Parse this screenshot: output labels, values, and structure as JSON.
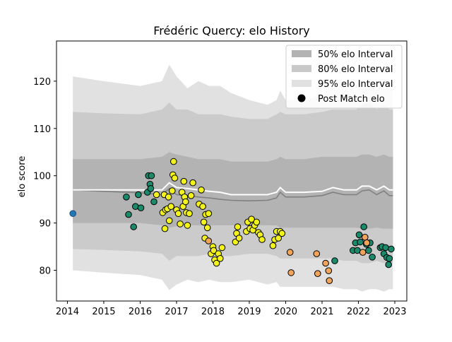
{
  "chart_data": {
    "type": "scatter",
    "title": "Frédéric Quercy: elo History",
    "xlabel": "",
    "ylabel": "elo score",
    "xlim": [
      2013.7,
      2023.33
    ],
    "ylim": [
      73.5,
      128.5
    ],
    "x_ticks": [
      2014,
      2015,
      2016,
      2017,
      2018,
      2019,
      2020,
      2021,
      2022,
      2023
    ],
    "y_ticks": [
      80,
      90,
      100,
      110,
      120
    ],
    "grid": false,
    "legend_position": "top-right",
    "legend": [
      {
        "label": "50% elo Interval",
        "swatch": "#b3b3b3",
        "kind": "patch"
      },
      {
        "label": "80% elo Interval",
        "swatch": "#c9c9c9",
        "kind": "patch"
      },
      {
        "label": "95% elo Interval",
        "swatch": "#e1e1e1",
        "kind": "patch"
      },
      {
        "label": "Post Match elo",
        "swatch": "#000000",
        "kind": "marker"
      }
    ],
    "colors": {
      "band95": "#e1e1e1",
      "band80": "#cbcbcb",
      "band50": "#b3b3b3",
      "mean_line": "#ffffff",
      "median_line": "#808080",
      "point_edge": "#000000",
      "green": "#1b8a6b",
      "yellow": "#f2f21c",
      "orange": "#f2a55a",
      "blue": "#1f77b4"
    },
    "interval_x": [
      2014.15,
      2015.0,
      2016.0,
      2016.6,
      2016.8,
      2017.0,
      2017.3,
      2017.6,
      2017.9,
      2018.2,
      2018.5,
      2019.0,
      2019.5,
      2019.75,
      2019.85,
      2020.0,
      2020.5,
      2021.0,
      2021.3,
      2021.6,
      2021.95,
      2022.1,
      2022.3,
      2022.5,
      2022.7,
      2022.85,
      2022.95
    ],
    "upper95": [
      121,
      120,
      119,
      120,
      123.5,
      121,
      118.5,
      120,
      119,
      119,
      117.5,
      116,
      115,
      116,
      118,
      116,
      116,
      117,
      119,
      118,
      118,
      120,
      120,
      118,
      120,
      118,
      118
    ],
    "lower95": [
      80,
      79.5,
      79,
      78,
      75.8,
      77,
      78,
      77.5,
      78,
      77.5,
      77.5,
      78,
      77,
      77.5,
      76.5,
      76.5,
      76.5,
      76.5,
      76.5,
      76,
      76,
      75.5,
      76,
      76,
      75.5,
      76,
      76
    ],
    "upper80": [
      113.5,
      113.2,
      113,
      114,
      115.5,
      114,
      114,
      113,
      113,
      113,
      112.5,
      112,
      112,
      113,
      113.5,
      113,
      113,
      113.5,
      114,
      114,
      114,
      115,
      115.5,
      114,
      115,
      114,
      114
    ],
    "lower80": [
      84.5,
      84.3,
      84,
      83.5,
      82,
      83,
      83,
      83,
      83.5,
      83,
      83,
      83.5,
      83.5,
      83,
      82.5,
      82.5,
      82.5,
      82.5,
      82.5,
      82,
      82,
      81.5,
      81.5,
      82,
      81.5,
      81.5,
      81.5
    ],
    "upper50": [
      103.5,
      103.5,
      103.5,
      104,
      105,
      104.5,
      104,
      103.5,
      103.5,
      103.5,
      103,
      103,
      103,
      103.5,
      104,
      103.5,
      103.5,
      104,
      104,
      104,
      104,
      104.5,
      104.5,
      104,
      104.5,
      104,
      104
    ],
    "lower50": [
      90,
      90,
      90,
      89.5,
      89,
      89.3,
      89.5,
      89.5,
      89.5,
      89.5,
      89.5,
      89.5,
      89.5,
      89.5,
      89,
      89,
      89,
      89,
      89,
      89,
      89,
      88.8,
      88.8,
      89,
      88.8,
      88.8,
      88.8
    ],
    "mean_line": [
      97,
      97,
      97,
      97,
      98.5,
      97.5,
      97.3,
      97,
      96.7,
      96.5,
      96,
      96,
      96,
      96.5,
      97.5,
      96.5,
      96.5,
      96.7,
      97.5,
      97,
      97,
      97.8,
      97.8,
      97,
      97.8,
      97,
      97
    ],
    "median_line": [
      97,
      96.7,
      96.4,
      96,
      97.3,
      96,
      95.8,
      95.5,
      95.3,
      95,
      94.8,
      94.7,
      94.8,
      95.3,
      96.5,
      95.5,
      95.5,
      95.8,
      96.5,
      96,
      96,
      96.8,
      97,
      96,
      96.8,
      95.8,
      95.8
    ],
    "series": [
      {
        "color": "blue",
        "points": [
          [
            2014.15,
            92.0
          ]
        ]
      },
      {
        "color": "green",
        "points": [
          [
            2015.62,
            95.5
          ],
          [
            2015.68,
            91.8
          ],
          [
            2015.82,
            89.2
          ],
          [
            2015.87,
            93.5
          ],
          [
            2015.95,
            96.0
          ],
          [
            2016.02,
            93.2
          ],
          [
            2016.2,
            96.5
          ],
          [
            2016.23,
            100.0
          ],
          [
            2016.27,
            98.2
          ],
          [
            2016.29,
            97.3
          ],
          [
            2016.31,
            100.0
          ],
          [
            2016.38,
            94.5
          ],
          [
            2021.35,
            82.0
          ],
          [
            2021.85,
            84.2
          ],
          [
            2021.92,
            85.8
          ],
          [
            2021.97,
            84.2
          ],
          [
            2022.02,
            87.5
          ],
          [
            2022.05,
            86.0
          ],
          [
            2022.15,
            89.2
          ],
          [
            2022.22,
            85.5
          ],
          [
            2022.28,
            84.2
          ],
          [
            2022.32,
            85.8
          ],
          [
            2022.38,
            82.8
          ],
          [
            2022.6,
            84.8
          ],
          [
            2022.65,
            85.0
          ],
          [
            2022.7,
            83.5
          ],
          [
            2022.75,
            84.8
          ],
          [
            2022.78,
            82.7
          ],
          [
            2022.83,
            81.2
          ],
          [
            2022.85,
            82.5
          ],
          [
            2022.9,
            84.5
          ]
        ]
      },
      {
        "color": "yellow",
        "points": [
          [
            2016.45,
            96.0
          ],
          [
            2016.62,
            92.2
          ],
          [
            2016.66,
            96.0
          ],
          [
            2016.68,
            88.8
          ],
          [
            2016.7,
            92.8
          ],
          [
            2016.75,
            93.0
          ],
          [
            2016.78,
            95.5
          ],
          [
            2016.8,
            90.5
          ],
          [
            2016.85,
            93.5
          ],
          [
            2016.88,
            96.8
          ],
          [
            2016.9,
            100.2
          ],
          [
            2016.92,
            103.0
          ],
          [
            2016.95,
            99.5
          ],
          [
            2017.0,
            92.8
          ],
          [
            2017.05,
            92.0
          ],
          [
            2017.1,
            89.8
          ],
          [
            2017.15,
            96.5
          ],
          [
            2017.18,
            93.5
          ],
          [
            2017.2,
            98.8
          ],
          [
            2017.22,
            95.5
          ],
          [
            2017.25,
            94.5
          ],
          [
            2017.27,
            92.2
          ],
          [
            2017.3,
            89.5
          ],
          [
            2017.35,
            92.0
          ],
          [
            2017.4,
            95.8
          ],
          [
            2017.45,
            98.5
          ],
          [
            2017.62,
            94.0
          ],
          [
            2017.68,
            97.0
          ],
          [
            2017.72,
            93.5
          ],
          [
            2017.75,
            90.2
          ],
          [
            2017.78,
            86.8
          ],
          [
            2017.8,
            91.8
          ],
          [
            2017.85,
            89.0
          ],
          [
            2017.88,
            92.0
          ],
          [
            2017.95,
            83.5
          ],
          [
            2018.0,
            85.0
          ],
          [
            2018.02,
            84.2
          ],
          [
            2018.05,
            82.2
          ],
          [
            2018.1,
            81.5
          ],
          [
            2018.15,
            83.5
          ],
          [
            2018.2,
            82.5
          ],
          [
            2018.25,
            84.8
          ],
          [
            2018.62,
            86.0
          ],
          [
            2018.65,
            87.8
          ],
          [
            2018.68,
            89.2
          ],
          [
            2018.72,
            86.8
          ],
          [
            2018.92,
            88.2
          ],
          [
            2018.96,
            90.2
          ],
          [
            2019.02,
            88.8
          ],
          [
            2019.06,
            90.8
          ],
          [
            2019.1,
            88.5
          ],
          [
            2019.15,
            89.5
          ],
          [
            2019.2,
            90.2
          ],
          [
            2019.25,
            88.0
          ],
          [
            2019.3,
            87.5
          ],
          [
            2019.35,
            86.5
          ],
          [
            2019.65,
            85.2
          ],
          [
            2019.7,
            86.5
          ],
          [
            2019.75,
            88.2
          ],
          [
            2019.8,
            86.8
          ],
          [
            2019.85,
            88.2
          ],
          [
            2019.9,
            87.8
          ]
        ]
      },
      {
        "color": "orange",
        "points": [
          [
            2017.88,
            86.2
          ],
          [
            2020.12,
            83.8
          ],
          [
            2020.15,
            79.5
          ],
          [
            2020.85,
            83.5
          ],
          [
            2020.88,
            79.3
          ],
          [
            2021.1,
            81.5
          ],
          [
            2021.18,
            79.9
          ],
          [
            2021.2,
            77.8
          ],
          [
            2022.12,
            83.8
          ],
          [
            2022.18,
            87.0
          ],
          [
            2022.23,
            85.8
          ]
        ]
      }
    ]
  }
}
